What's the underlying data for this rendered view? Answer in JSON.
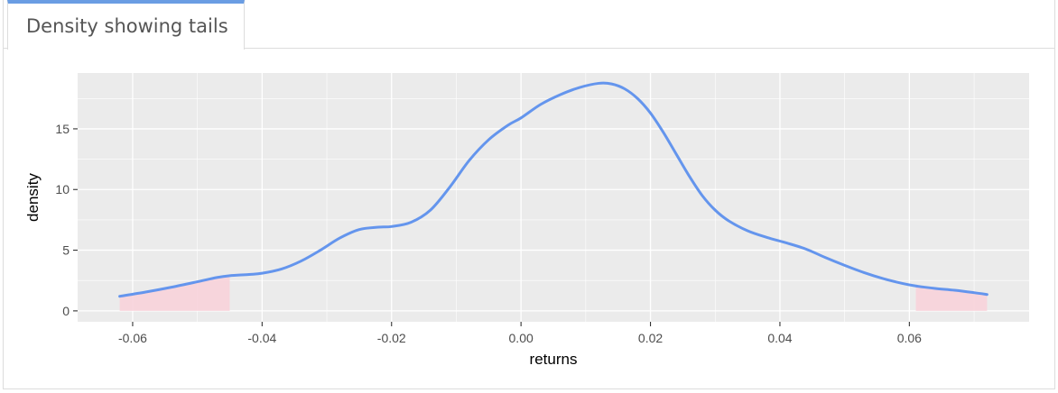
{
  "tabs": [
    {
      "label": "Density showing tails"
    }
  ],
  "chart_data": {
    "type": "area",
    "xlabel": "returns",
    "ylabel": "density",
    "xlim": [
      -0.0685,
      0.0785
    ],
    "ylim": [
      -0.9,
      19.6
    ],
    "x_ticks": [
      -0.06,
      -0.04,
      -0.02,
      0.0,
      0.02,
      0.04,
      0.06
    ],
    "x_tick_labels": [
      "-0.06",
      "-0.04",
      "-0.02",
      "0.00",
      "0.02",
      "0.04",
      "0.06"
    ],
    "y_ticks": [
      0,
      5,
      10,
      15
    ],
    "y_tick_labels": [
      "0",
      "5",
      "10",
      "15"
    ],
    "grid": true,
    "background_color": "#ebebeb",
    "line_color": "#6495ed",
    "tail_fill_color": "#f8d3da",
    "density_curve": {
      "x": [
        -0.062,
        -0.058,
        -0.054,
        -0.05,
        -0.047,
        -0.045,
        -0.042,
        -0.04,
        -0.037,
        -0.034,
        -0.031,
        -0.028,
        -0.025,
        -0.022,
        -0.02,
        -0.017,
        -0.014,
        -0.011,
        -0.008,
        -0.005,
        -0.002,
        0.0,
        0.003,
        0.006,
        0.009,
        0.012,
        0.014,
        0.016,
        0.018,
        0.02,
        0.022,
        0.024,
        0.026,
        0.028,
        0.03,
        0.032,
        0.035,
        0.038,
        0.041,
        0.044,
        0.047,
        0.05,
        0.053,
        0.056,
        0.059,
        0.061,
        0.064,
        0.067,
        0.07,
        0.072
      ],
      "y": [
        1.2,
        1.55,
        1.95,
        2.4,
        2.75,
        2.9,
        3.0,
        3.1,
        3.45,
        4.1,
        5.0,
        6.0,
        6.7,
        6.9,
        6.95,
        7.3,
        8.3,
        10.2,
        12.4,
        14.1,
        15.3,
        15.9,
        17.0,
        17.8,
        18.4,
        18.75,
        18.7,
        18.3,
        17.5,
        16.3,
        14.7,
        12.9,
        11.1,
        9.5,
        8.3,
        7.45,
        6.6,
        6.05,
        5.6,
        5.1,
        4.4,
        3.75,
        3.15,
        2.65,
        2.25,
        2.05,
        1.85,
        1.7,
        1.5,
        1.35
      ]
    },
    "tail_regions": [
      {
        "from": -0.062,
        "to": -0.045
      },
      {
        "from": 0.061,
        "to": 0.072
      }
    ]
  }
}
